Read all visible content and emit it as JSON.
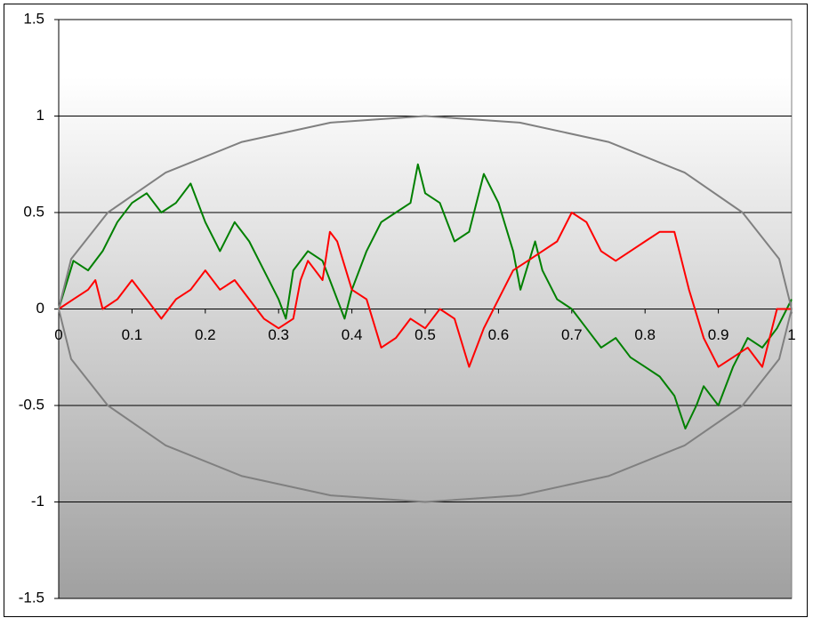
{
  "chart_data": {
    "type": "line",
    "series": [
      {
        "color": "#008000",
        "x": [
          0,
          0.02,
          0.04,
          0.06,
          0.08,
          0.1,
          0.12,
          0.14,
          0.16,
          0.18,
          0.2,
          0.22,
          0.24,
          0.26,
          0.28,
          0.3,
          0.31,
          0.32,
          0.34,
          0.36,
          0.38,
          0.39,
          0.4,
          0.42,
          0.44,
          0.46,
          0.48,
          0.49,
          0.5,
          0.52,
          0.54,
          0.56,
          0.58,
          0.6,
          0.62,
          0.63,
          0.65,
          0.66,
          0.68,
          0.7,
          0.72,
          0.74,
          0.76,
          0.78,
          0.8,
          0.82,
          0.84,
          0.855,
          0.87,
          0.88,
          0.9,
          0.92,
          0.94,
          0.96,
          0.98,
          1
        ],
        "values": [
          0,
          0.25,
          0.2,
          0.3,
          0.45,
          0.55,
          0.6,
          0.5,
          0.55,
          0.65,
          0.45,
          0.3,
          0.45,
          0.35,
          0.2,
          0.05,
          -0.05,
          0.2,
          0.3,
          0.25,
          0.05,
          -0.05,
          0.1,
          0.3,
          0.45,
          0.5,
          0.55,
          0.75,
          0.6,
          0.55,
          0.35,
          0.4,
          0.7,
          0.55,
          0.3,
          0.1,
          0.35,
          0.2,
          0.05,
          0,
          -0.1,
          -0.2,
          -0.15,
          -0.25,
          -0.3,
          -0.35,
          -0.45,
          -0.62,
          -0.5,
          -0.4,
          -0.5,
          -0.3,
          -0.15,
          -0.2,
          -0.1,
          0.05
        ]
      },
      {
        "color": "#ff0000",
        "x": [
          0,
          0.02,
          0.04,
          0.05,
          0.06,
          0.08,
          0.1,
          0.12,
          0.14,
          0.16,
          0.18,
          0.2,
          0.22,
          0.24,
          0.26,
          0.28,
          0.3,
          0.32,
          0.33,
          0.34,
          0.36,
          0.37,
          0.38,
          0.4,
          0.42,
          0.44,
          0.46,
          0.48,
          0.5,
          0.52,
          0.54,
          0.56,
          0.58,
          0.6,
          0.62,
          0.64,
          0.66,
          0.68,
          0.7,
          0.72,
          0.74,
          0.76,
          0.78,
          0.8,
          0.82,
          0.84,
          0.86,
          0.88,
          0.9,
          0.92,
          0.94,
          0.96,
          0.98,
          1
        ],
        "values": [
          0,
          0.05,
          0.1,
          0.15,
          0,
          0.05,
          0.15,
          0.05,
          -0.05,
          0.05,
          0.1,
          0.2,
          0.1,
          0.15,
          0.05,
          -0.05,
          -0.1,
          -0.05,
          0.15,
          0.25,
          0.15,
          0.4,
          0.35,
          0.1,
          0.05,
          -0.2,
          -0.15,
          -0.05,
          -0.1,
          0,
          -0.05,
          -0.3,
          -0.1,
          0.05,
          0.2,
          0.25,
          0.3,
          0.35,
          0.5,
          0.45,
          0.3,
          0.25,
          0.3,
          0.35,
          0.4,
          0.4,
          0.1,
          -0.15,
          -0.3,
          -0.25,
          -0.2,
          -0.3,
          0,
          0
        ]
      },
      {
        "color": "#808080",
        "x": [
          1,
          0.983,
          0.933,
          0.854,
          0.75,
          0.629,
          0.5,
          0.371,
          0.25,
          0.146,
          0.067,
          0.017,
          0,
          0.017,
          0.067,
          0.146,
          0.25,
          0.371,
          0.5,
          0.629,
          0.75,
          0.854,
          0.933,
          0.983,
          1
        ],
        "values": [
          0,
          0.259,
          0.5,
          0.707,
          0.866,
          0.966,
          1,
          0.966,
          0.866,
          0.707,
          0.5,
          0.259,
          0,
          -0.259,
          -0.5,
          -0.707,
          -0.866,
          -0.966,
          -1,
          -0.966,
          -0.866,
          -0.707,
          -0.5,
          -0.259,
          0
        ]
      }
    ],
    "xlim": [
      0,
      1
    ],
    "xticks": [
      0,
      0.1,
      0.2,
      0.3,
      0.4,
      0.5,
      0.6,
      0.7,
      0.8,
      0.9,
      1
    ],
    "ylim": [
      -1.5,
      1.5
    ],
    "yticks": [
      -1.5,
      -1,
      -0.5,
      0,
      0.5,
      1,
      1.5
    ],
    "grid": true
  }
}
